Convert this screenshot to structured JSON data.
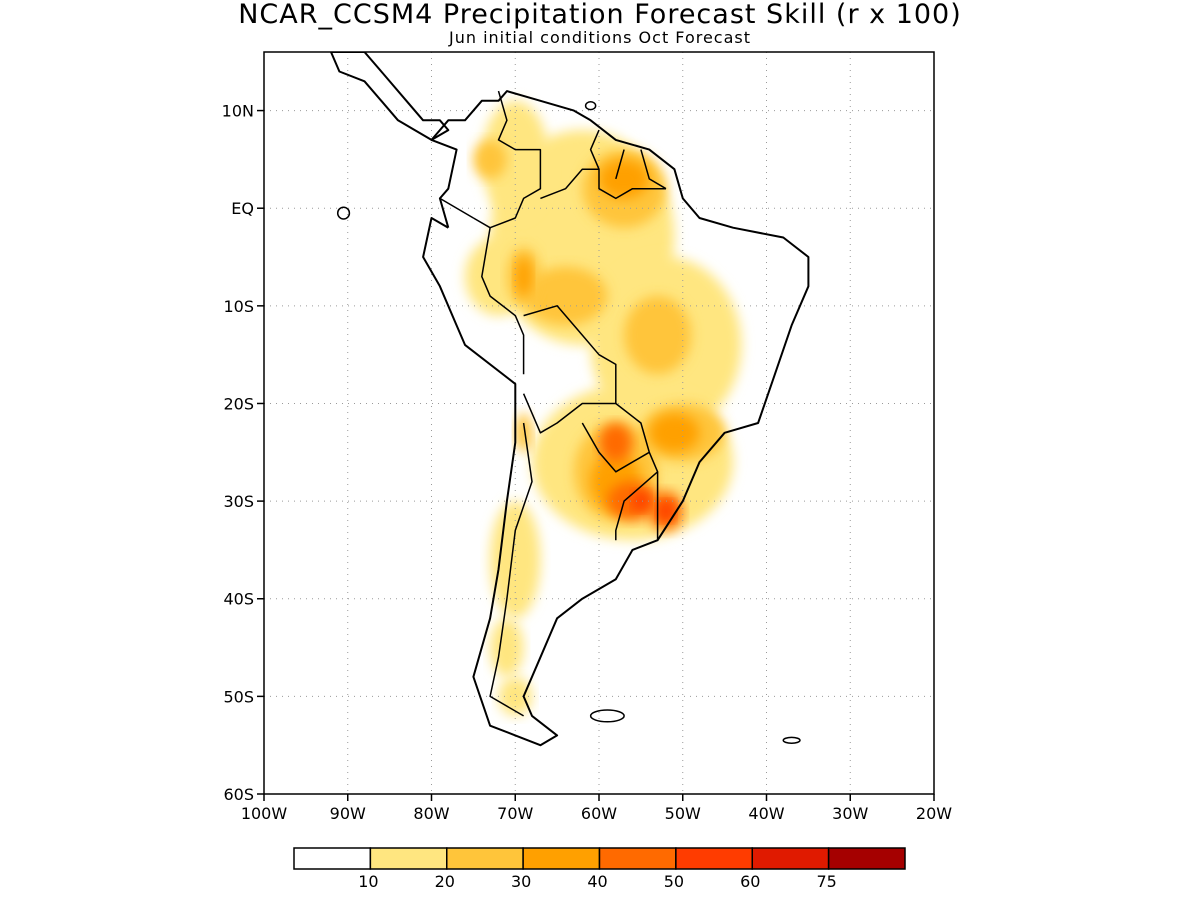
{
  "title": "NCAR_CCSM4 Precipitation Forecast Skill (r x 100)",
  "subtitle": "Jun initial conditions  Oct Forecast",
  "map": {
    "projection": "lat-lon",
    "lon_range": [
      -100,
      -20
    ],
    "lat_range": [
      -60,
      16
    ],
    "grid": "dotted",
    "lat_ticks": [
      {
        "value": 10,
        "label": "10N"
      },
      {
        "value": 0,
        "label": "EQ"
      },
      {
        "value": -10,
        "label": "10S"
      },
      {
        "value": -20,
        "label": "20S"
      },
      {
        "value": -30,
        "label": "30S"
      },
      {
        "value": -40,
        "label": "40S"
      },
      {
        "value": -50,
        "label": "50S"
      },
      {
        "value": -60,
        "label": "60S"
      }
    ],
    "lon_ticks": [
      {
        "value": -100,
        "label": "100W"
      },
      {
        "value": -90,
        "label": "90W"
      },
      {
        "value": -80,
        "label": "80W"
      },
      {
        "value": -70,
        "label": "70W"
      },
      {
        "value": -60,
        "label": "60W"
      },
      {
        "value": -50,
        "label": "50W"
      },
      {
        "value": -40,
        "label": "40W"
      },
      {
        "value": -30,
        "label": "30W"
      },
      {
        "value": -20,
        "label": "20W"
      }
    ]
  },
  "colorbar": {
    "colors": [
      "#ffffff",
      "#ffe680",
      "#ffc53a",
      "#ffa000",
      "#ff6a00",
      "#ff3c00",
      "#e01a00",
      "#a50000"
    ],
    "labels": [
      "10",
      "20",
      "30",
      "40",
      "50",
      "60",
      "75"
    ]
  },
  "skill_regions": [
    {
      "level": 1,
      "lon": -62,
      "lat": -3,
      "rx": 11,
      "ry": 11
    },
    {
      "level": 1,
      "lon": -72,
      "lat": -7,
      "rx": 4,
      "ry": 4
    },
    {
      "level": 1,
      "lon": -70,
      "lat": 5,
      "rx": 4,
      "ry": 6
    },
    {
      "level": 1,
      "lon": -52,
      "lat": -14,
      "rx": 9,
      "ry": 9
    },
    {
      "level": 1,
      "lon": -56,
      "lat": -26,
      "rx": 12,
      "ry": 8
    },
    {
      "level": 1,
      "lon": -70,
      "lat": -36,
      "rx": 3,
      "ry": 6
    },
    {
      "level": 1,
      "lon": -71,
      "lat": -45,
      "rx": 2,
      "ry": 3
    },
    {
      "level": 1,
      "lon": -70,
      "lat": -50,
      "rx": 2,
      "ry": 2
    },
    {
      "level": 2,
      "lon": -57,
      "lat": 2,
      "rx": 5,
      "ry": 4
    },
    {
      "level": 2,
      "lon": -64,
      "lat": -9,
      "rx": 5,
      "ry": 3
    },
    {
      "level": 2,
      "lon": -69,
      "lat": -7,
      "rx": 2,
      "ry": 3
    },
    {
      "level": 2,
      "lon": -53,
      "lat": -13,
      "rx": 4,
      "ry": 4
    },
    {
      "level": 2,
      "lon": -58,
      "lat": -27,
      "rx": 5,
      "ry": 5
    },
    {
      "level": 2,
      "lon": -50,
      "lat": -23,
      "rx": 5,
      "ry": 3
    },
    {
      "level": 2,
      "lon": -69,
      "lat": -23,
      "rx": 1,
      "ry": 2
    },
    {
      "level": 2,
      "lon": -73,
      "lat": 5,
      "rx": 2,
      "ry": 2
    },
    {
      "level": 3,
      "lon": -57,
      "lat": 3,
      "rx": 3,
      "ry": 2
    },
    {
      "level": 3,
      "lon": -69,
      "lat": -7,
      "rx": 1,
      "ry": 2
    },
    {
      "level": 3,
      "lon": -58,
      "lat": -28,
      "rx": 3,
      "ry": 3
    },
    {
      "level": 3,
      "lon": -51,
      "lat": -23,
      "rx": 3,
      "ry": 2
    },
    {
      "level": 4,
      "lon": -58,
      "lat": -24,
      "rx": 2,
      "ry": 2
    },
    {
      "level": 4,
      "lon": -56,
      "lat": -30,
      "rx": 3,
      "ry": 2
    },
    {
      "level": 4,
      "lon": -52,
      "lat": -31,
      "rx": 2,
      "ry": 2
    },
    {
      "level": 5,
      "lon": -55,
      "lat": -30,
      "rx": 1,
      "ry": 1
    },
    {
      "level": 5,
      "lon": -52,
      "lat": -31,
      "rx": 1,
      "ry": 1
    }
  ],
  "coastline": [
    [
      -78,
      -2
    ],
    [
      -80,
      -1
    ],
    [
      -81,
      -5
    ],
    [
      -79,
      -8
    ],
    [
      -77,
      -12
    ],
    [
      -76,
      -14
    ],
    [
      -70,
      -18
    ],
    [
      -70,
      -24
    ],
    [
      -71,
      -30
    ],
    [
      -72,
      -37
    ],
    [
      -73,
      -42
    ],
    [
      -75,
      -48
    ],
    [
      -73,
      -53
    ],
    [
      -70,
      -54
    ],
    [
      -67,
      -55
    ],
    [
      -65,
      -54
    ],
    [
      -68,
      -52
    ],
    [
      -69,
      -50
    ],
    [
      -67,
      -46
    ],
    [
      -65,
      -42
    ],
    [
      -62,
      -40
    ],
    [
      -58,
      -38
    ],
    [
      -56,
      -35
    ],
    [
      -53,
      -34
    ],
    [
      -50,
      -30
    ],
    [
      -48,
      -26
    ],
    [
      -45,
      -23
    ],
    [
      -41,
      -22
    ],
    [
      -39,
      -17
    ],
    [
      -37,
      -12
    ],
    [
      -35,
      -8
    ],
    [
      -35,
      -5
    ],
    [
      -38,
      -3
    ],
    [
      -44,
      -2
    ],
    [
      -48,
      -1
    ],
    [
      -50,
      1
    ],
    [
      -51,
      4
    ],
    [
      -54,
      6
    ],
    [
      -58,
      7
    ],
    [
      -61,
      9
    ],
    [
      -63,
      10
    ],
    [
      -67,
      11
    ],
    [
      -71,
      12
    ],
    [
      -72,
      11
    ],
    [
      -74,
      11
    ],
    [
      -76,
      9
    ],
    [
      -78,
      9
    ],
    [
      -79,
      8
    ],
    [
      -80,
      7
    ],
    [
      -77,
      6
    ],
    [
      -78,
      2
    ],
    [
      -79,
      1
    ],
    [
      -78,
      -2
    ]
  ],
  "central_america": [
    [
      -92,
      16
    ],
    [
      -88,
      16
    ],
    [
      -86,
      14
    ],
    [
      -83,
      11
    ],
    [
      -81,
      9
    ],
    [
      -79,
      9
    ],
    [
      -78,
      8
    ],
    [
      -80,
      7
    ],
    [
      -82,
      8
    ],
    [
      -84,
      9
    ],
    [
      -86,
      11
    ],
    [
      -88,
      13
    ],
    [
      -91,
      14
    ],
    [
      -92,
      16
    ]
  ],
  "borders": [
    [
      [
        -72,
        12
      ],
      [
        -71,
        9
      ],
      [
        -72,
        7
      ],
      [
        -70,
        6
      ],
      [
        -67,
        6
      ],
      [
        -67,
        2
      ],
      [
        -69,
        1
      ],
      [
        -70,
        -1
      ],
      [
        -73,
        -2
      ],
      [
        -75,
        -1
      ]
    ],
    [
      [
        -75,
        -1
      ],
      [
        -79,
        1
      ]
    ],
    [
      [
        -73,
        -2
      ],
      [
        -74,
        -7
      ],
      [
        -73,
        -9
      ],
      [
        -70,
        -11
      ],
      [
        -69,
        -13
      ],
      [
        -69,
        -17
      ]
    ],
    [
      [
        -60,
        8
      ],
      [
        -61,
        6
      ],
      [
        -60,
        4
      ],
      [
        -60,
        2
      ],
      [
        -58,
        1
      ],
      [
        -56,
        2
      ],
      [
        -54,
        2
      ],
      [
        -52,
        2
      ]
    ],
    [
      [
        -67,
        1
      ],
      [
        -64,
        2
      ],
      [
        -62,
        4
      ],
      [
        -60,
        4
      ]
    ],
    [
      [
        -69,
        -11
      ],
      [
        -65,
        -10
      ],
      [
        -62,
        -13
      ],
      [
        -60,
        -15
      ],
      [
        -58,
        -16
      ],
      [
        -58,
        -20
      ],
      [
        -62,
        -20
      ],
      [
        -65,
        -22
      ],
      [
        -67,
        -23
      ],
      [
        -69,
        -19
      ]
    ],
    [
      [
        -58,
        -20
      ],
      [
        -55,
        -22
      ],
      [
        -54,
        -25
      ],
      [
        -58,
        -27
      ],
      [
        -60,
        -25
      ],
      [
        -62,
        -22
      ]
    ],
    [
      [
        -54,
        -25
      ],
      [
        -53,
        -27
      ],
      [
        -57,
        -30
      ],
      [
        -58,
        -33
      ],
      [
        -58,
        -34
      ]
    ],
    [
      [
        -53,
        -27
      ],
      [
        -53,
        -34
      ]
    ],
    [
      [
        -69,
        -22
      ],
      [
        -68,
        -28
      ],
      [
        -70,
        -33
      ],
      [
        -71,
        -40
      ],
      [
        -72,
        -46
      ],
      [
        -73,
        -50
      ],
      [
        -69,
        -52
      ]
    ],
    [
      [
        -55,
        6
      ],
      [
        -54,
        3
      ],
      [
        -52,
        2
      ]
    ],
    [
      [
        -57,
        6
      ],
      [
        -58,
        3
      ]
    ]
  ],
  "islands": [
    {
      "lon": -59,
      "lat": -52,
      "rx": 2,
      "ry": 0.6
    },
    {
      "lon": -37,
      "lat": -54.5,
      "rx": 1,
      "ry": 0.3
    },
    {
      "lon": -90.5,
      "lat": -0.5,
      "rx": 0.7,
      "ry": 0.6
    },
    {
      "lon": -61,
      "lat": 10.5,
      "rx": 0.6,
      "ry": 0.4
    }
  ]
}
